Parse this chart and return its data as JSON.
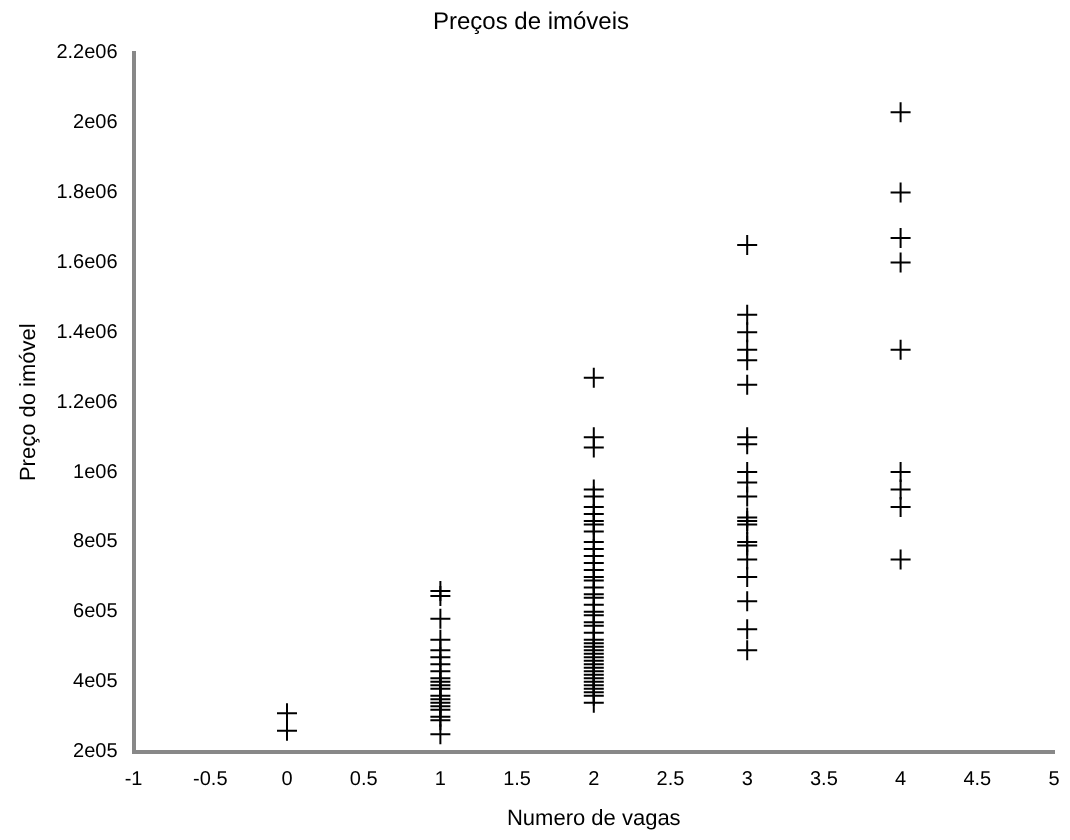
{
  "chart_data": {
    "type": "scatter",
    "title": "Preços de imóveis",
    "xlabel": "Numero de vagas",
    "ylabel": "Preço do imóvel",
    "series": [
      {
        "color": "#000000",
        "x": [
          0,
          0,
          1,
          1,
          1,
          1,
          1,
          1,
          1,
          1,
          1,
          1,
          1,
          1,
          1,
          1,
          1,
          1,
          1,
          1,
          1,
          1,
          2,
          2,
          2,
          2,
          2,
          2,
          2,
          2,
          2,
          2,
          2,
          2,
          2,
          2,
          2,
          2,
          2,
          2,
          2,
          2,
          2,
          2,
          2,
          2,
          2,
          2,
          2,
          2,
          2,
          2,
          2,
          2,
          2,
          2,
          2,
          2,
          2,
          2,
          2,
          2,
          2,
          2,
          2,
          2,
          3,
          3,
          3,
          3,
          3,
          3,
          3,
          3,
          3,
          3,
          3,
          3,
          3,
          3,
          3,
          3,
          3,
          3,
          3,
          3,
          3,
          4,
          4,
          4,
          4,
          4,
          4,
          4,
          4,
          4
        ],
        "values": [
          310000,
          260000,
          660000,
          645000,
          580000,
          520000,
          490000,
          470000,
          450000,
          430000,
          410000,
          400000,
          390000,
          380000,
          360000,
          350000,
          340000,
          330000,
          320000,
          300000,
          290000,
          250000,
          1270000,
          1100000,
          1070000,
          950000,
          930000,
          900000,
          880000,
          860000,
          850000,
          830000,
          800000,
          780000,
          760000,
          740000,
          720000,
          700000,
          690000,
          670000,
          650000,
          640000,
          620000,
          600000,
          590000,
          570000,
          560000,
          540000,
          520000,
          510000,
          500000,
          490000,
          480000,
          470000,
          460000,
          450000,
          440000,
          430000,
          420000,
          410000,
          400000,
          390000,
          380000,
          370000,
          360000,
          340000,
          1650000,
          1450000,
          1400000,
          1350000,
          1320000,
          1250000,
          1100000,
          1080000,
          1000000,
          970000,
          930000,
          870000,
          860000,
          850000,
          800000,
          790000,
          750000,
          700000,
          630000,
          550000,
          490000,
          2030000,
          1800000,
          1670000,
          1600000,
          1350000,
          1000000,
          950000,
          900000,
          750000
        ]
      }
    ],
    "xlim": [
      -1,
      5
    ],
    "xticks": [
      -1,
      -0.5,
      0,
      0.5,
      1,
      1.5,
      2,
      2.5,
      3,
      3.5,
      4,
      4.5,
      5
    ],
    "ylim": [
      200000,
      2200000
    ],
    "yticks": [
      {
        "value": 200000,
        "label": "2e05"
      },
      {
        "value": 400000,
        "label": "4e05"
      },
      {
        "value": 600000,
        "label": "6e05"
      },
      {
        "value": 800000,
        "label": "8e05"
      },
      {
        "value": 1000000,
        "label": "1e06"
      },
      {
        "value": 1200000,
        "label": "1.2e06"
      },
      {
        "value": 1400000,
        "label": "1.4e06"
      },
      {
        "value": 1600000,
        "label": "1.6e06"
      },
      {
        "value": 1800000,
        "label": "1.8e06"
      },
      {
        "value": 2000000,
        "label": "2e06"
      },
      {
        "value": 2200000,
        "label": "2.2e06"
      }
    ],
    "grid": false,
    "legend": false,
    "marker": "cross"
  }
}
